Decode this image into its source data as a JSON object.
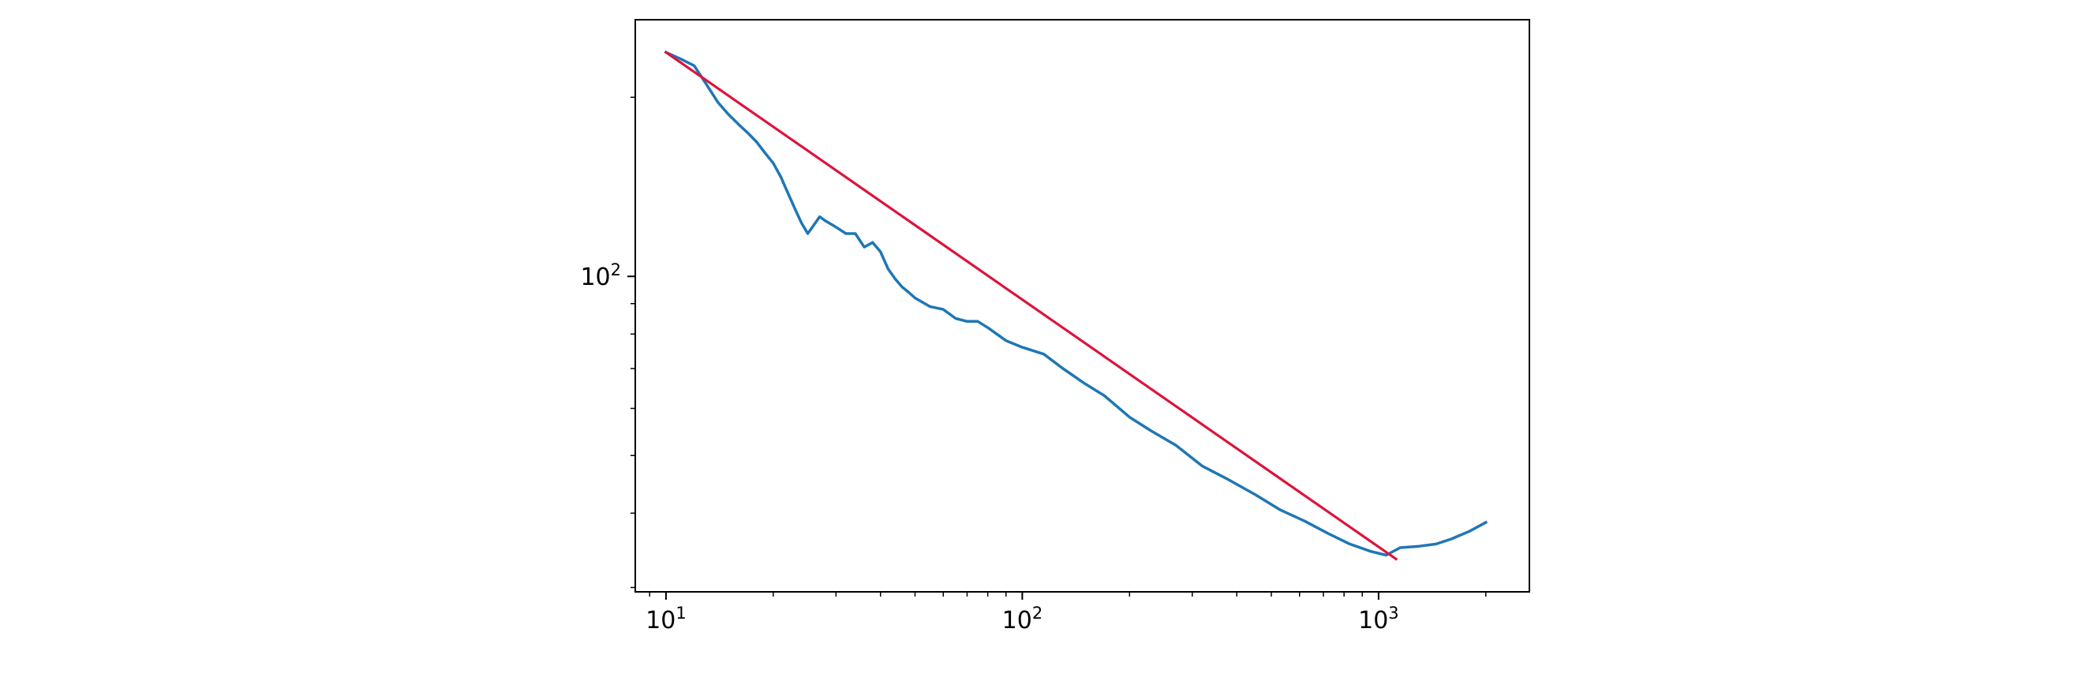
{
  "chart_data": {
    "type": "line",
    "title": "",
    "xlabel": "",
    "ylabel": "",
    "xscale": "log",
    "yscale": "log",
    "xlim": [
      8.2,
      2650
    ],
    "ylim": [
      29.5,
      270
    ],
    "grid": false,
    "x_tick_labels": [
      {
        "base": "10",
        "exp": "1",
        "value": 10
      },
      {
        "base": "10",
        "exp": "2",
        "value": 100
      },
      {
        "base": "10",
        "exp": "3",
        "value": 1000
      }
    ],
    "y_tick_labels": [
      {
        "base": "10",
        "exp": "2",
        "value": 100
      }
    ],
    "series": [
      {
        "color": "#1f77b4",
        "x": [
          10,
          11,
          12,
          13,
          14,
          15,
          16,
          17,
          18,
          19,
          20,
          21,
          22,
          23,
          24,
          25,
          26,
          27,
          28,
          30,
          32,
          34,
          36,
          38,
          40,
          42,
          44,
          46,
          48,
          50,
          55,
          60,
          65,
          70,
          75,
          80,
          90,
          100,
          115,
          130,
          150,
          170,
          200,
          230,
          270,
          320,
          380,
          450,
          530,
          620,
          720,
          830,
          950,
          1050,
          1150,
          1300,
          1450,
          1600,
          1800,
          2000
        ],
        "y": [
          238,
          232,
          226,
          210,
          196,
          187,
          180,
          174,
          168,
          161,
          155,
          147,
          138,
          130,
          123,
          118,
          122,
          126,
          124,
          121,
          118,
          118,
          112,
          114,
          110,
          103,
          99,
          96,
          94,
          92,
          89,
          88,
          85,
          84,
          84,
          82,
          78,
          76,
          74,
          70,
          66,
          63,
          58,
          55,
          52,
          48,
          45.5,
          43,
          40.5,
          38.8,
          37,
          35.5,
          34.5,
          34,
          35,
          35.2,
          35.5,
          36.2,
          37.3,
          38.6
        ]
      },
      {
        "color": "#dc143c",
        "x": [
          10,
          1120
        ],
        "y": [
          238,
          33.5
        ]
      }
    ]
  }
}
